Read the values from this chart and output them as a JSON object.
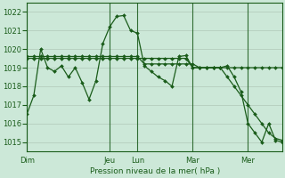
{
  "background_color": "#cce8d8",
  "grid_color": "#b0c8b8",
  "line_color": "#1a5c1a",
  "marker_color": "#1a5c1a",
  "ylabel_values": [
    1015,
    1016,
    1017,
    1018,
    1019,
    1020,
    1021,
    1022
  ],
  "ylim": [
    1014.5,
    1022.5
  ],
  "xlabel": "Pression niveau de la mer( hPa )",
  "day_labels": [
    "Dim",
    "Jeu",
    "Lun",
    "Mar",
    "Mer"
  ],
  "day_x": [
    0,
    12,
    16,
    24,
    32
  ],
  "series": [
    [
      1016.5,
      1017.5,
      1020.0,
      1019.0,
      1018.8,
      1019.1,
      1018.5,
      1019.0,
      1018.2,
      1017.3,
      1018.3,
      1020.3,
      1021.2,
      1021.75,
      1021.8,
      1021.0,
      1020.85,
      1019.1,
      1018.8,
      1018.5,
      1018.3,
      1018.0,
      1019.6,
      1019.65,
      1019.0,
      1019.0,
      1019.0,
      1019.0,
      1019.0,
      1019.1,
      1018.5,
      1017.7,
      1016.0,
      1015.5,
      1015.0,
      1016.0,
      1015.1,
      1015.0
    ],
    [
      1019.6,
      1019.6,
      1019.6,
      1019.6,
      1019.6,
      1019.6,
      1019.6,
      1019.6,
      1019.6,
      1019.6,
      1019.6,
      1019.6,
      1019.6,
      1019.6,
      1019.6,
      1019.6,
      1019.6,
      1019.2,
      1019.2,
      1019.2,
      1019.2,
      1019.2,
      1019.2,
      1019.2,
      1019.2,
      1019.0,
      1019.0,
      1019.0,
      1019.0,
      1019.0,
      1019.0,
      1019.0,
      1019.0,
      1019.0,
      1019.0,
      1019.0,
      1019.0,
      1019.0
    ],
    [
      1019.5,
      1019.5,
      1019.5,
      1019.5,
      1019.5,
      1019.5,
      1019.5,
      1019.5,
      1019.5,
      1019.5,
      1019.5,
      1019.5,
      1019.5,
      1019.5,
      1019.5,
      1019.5,
      1019.5,
      1019.5,
      1019.5,
      1019.5,
      1019.5,
      1019.5,
      1019.5,
      1019.5,
      1019.0,
      1019.0,
      1019.0,
      1019.0,
      1019.0,
      1018.5,
      1018.0,
      1017.5,
      1017.0,
      1016.5,
      1016.0,
      1015.5,
      1015.2,
      1015.1
    ]
  ],
  "n_points": 38,
  "xlim": [
    0,
    37
  ]
}
